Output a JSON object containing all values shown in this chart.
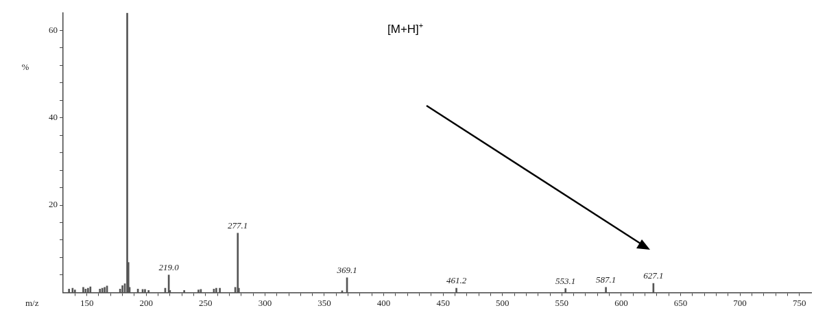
{
  "chart_data": {
    "type": "bar",
    "xlabel": "m/z",
    "ylabel": "%",
    "color": "#555555",
    "x": [
      135,
      138,
      140,
      147,
      149,
      151,
      153,
      161,
      163,
      165,
      167,
      178,
      180,
      182,
      184,
      185,
      186,
      193,
      197,
      199,
      202,
      216,
      219.0,
      220,
      232,
      244,
      246,
      257,
      259,
      262,
      275,
      277.1,
      278,
      365,
      369.1,
      461.2,
      553.1,
      587.1,
      627.1
    ],
    "values": [
      0.8,
      1,
      0.6,
      1.2,
      0.8,
      1,
      1.3,
      0.8,
      1,
      1.2,
      1.5,
      0.8,
      1.6,
      2,
      64,
      6.9,
      1.2,
      0.8,
      0.7,
      0.7,
      0.5,
      1,
      4.0,
      0.5,
      0.5,
      0.6,
      0.7,
      0.8,
      1,
      1,
      1.2,
      13.6,
      1,
      0.4,
      3.4,
      1.0,
      0.9,
      1.2,
      2.1
    ],
    "xlim": [
      130,
      760
    ],
    "xticks": [
      {
        "value": 140,
        "label": null
      },
      150,
      {
        "value": 160,
        "label": null
      },
      {
        "value": 170,
        "label": null
      },
      {
        "value": 180,
        "label": null
      },
      {
        "value": 190,
        "label": null
      },
      200,
      {
        "value": 210,
        "label": null
      },
      {
        "value": 220,
        "label": null
      },
      {
        "value": 230,
        "label": null
      },
      {
        "value": 240,
        "label": null
      },
      250,
      {
        "value": 260,
        "label": null
      },
      {
        "value": 270,
        "label": null
      },
      {
        "value": 280,
        "label": null
      },
      {
        "value": 290,
        "label": null
      },
      300,
      {
        "value": 310,
        "label": null
      },
      {
        "value": 320,
        "label": null
      },
      {
        "value": 330,
        "label": null
      },
      {
        "value": 340,
        "label": null
      },
      350,
      {
        "value": 360,
        "label": null
      },
      {
        "value": 370,
        "label": null
      },
      {
        "value": 380,
        "label": null
      },
      {
        "value": 390,
        "label": null
      },
      400,
      {
        "value": 410,
        "label": null
      },
      {
        "value": 420,
        "label": null
      },
      {
        "value": 430,
        "label": null
      },
      {
        "value": 440,
        "label": null
      },
      450,
      {
        "value": 460,
        "label": null
      },
      {
        "value": 470,
        "label": null
      },
      {
        "value": 480,
        "label": null
      },
      {
        "value": 490,
        "label": null
      },
      500,
      {
        "value": 510,
        "label": null
      },
      {
        "value": 520,
        "label": null
      },
      {
        "value": 530,
        "label": null
      },
      {
        "value": 540,
        "label": null
      },
      550,
      {
        "value": 560,
        "label": null
      },
      {
        "value": 570,
        "label": null
      },
      {
        "value": 580,
        "label": null
      },
      {
        "value": 590,
        "label": null
      },
      600,
      {
        "value": 610,
        "label": null
      },
      {
        "value": 620,
        "label": null
      },
      {
        "value": 630,
        "label": null
      },
      {
        "value": 640,
        "label": null
      },
      650,
      {
        "value": 660,
        "label": null
      },
      {
        "value": 670,
        "label": null
      },
      {
        "value": 680,
        "label": null
      },
      {
        "value": 690,
        "label": null
      },
      700,
      {
        "value": 710,
        "label": null
      },
      {
        "value": 720,
        "label": null
      },
      {
        "value": 730,
        "label": null
      },
      {
        "value": 740,
        "label": null
      },
      750
    ],
    "ylim": [
      0,
      64
    ],
    "yticks": [
      {
        "value": 4,
        "label": null
      },
      {
        "value": 8,
        "label": null
      },
      {
        "value": 12,
        "label": null
      },
      {
        "value": 16,
        "label": null
      },
      20,
      {
        "value": 24,
        "label": null
      },
      {
        "value": 28,
        "label": null
      },
      {
        "value": 32,
        "label": null
      },
      {
        "value": 36,
        "label": null
      },
      40,
      {
        "value": 44,
        "label": null
      },
      {
        "value": 48,
        "label": null
      },
      {
        "value": 52,
        "label": null
      },
      {
        "value": 56,
        "label": null
      },
      60
    ],
    "grid": false,
    "annotations": [
      "[M+H]$^{+}$",
      {
        "text": "219.0",
        "x": 219.0,
        "y": 4.0
      },
      {
        "text": "277.1",
        "x": 277.1,
        "y": 13.6
      },
      {
        "text": "369.1",
        "x": 369.1,
        "y": 3.4
      },
      {
        "text": "461.2",
        "x": 461.2,
        "y": 1.0
      },
      {
        "text": "553.1",
        "x": 553.1,
        "y": 0.9
      },
      {
        "text": "587.1",
        "x": 587.1,
        "y": 1.2
      },
      {
        "text": "627.1",
        "x": 627.1,
        "y": 2.1
      }
    ]
  }
}
